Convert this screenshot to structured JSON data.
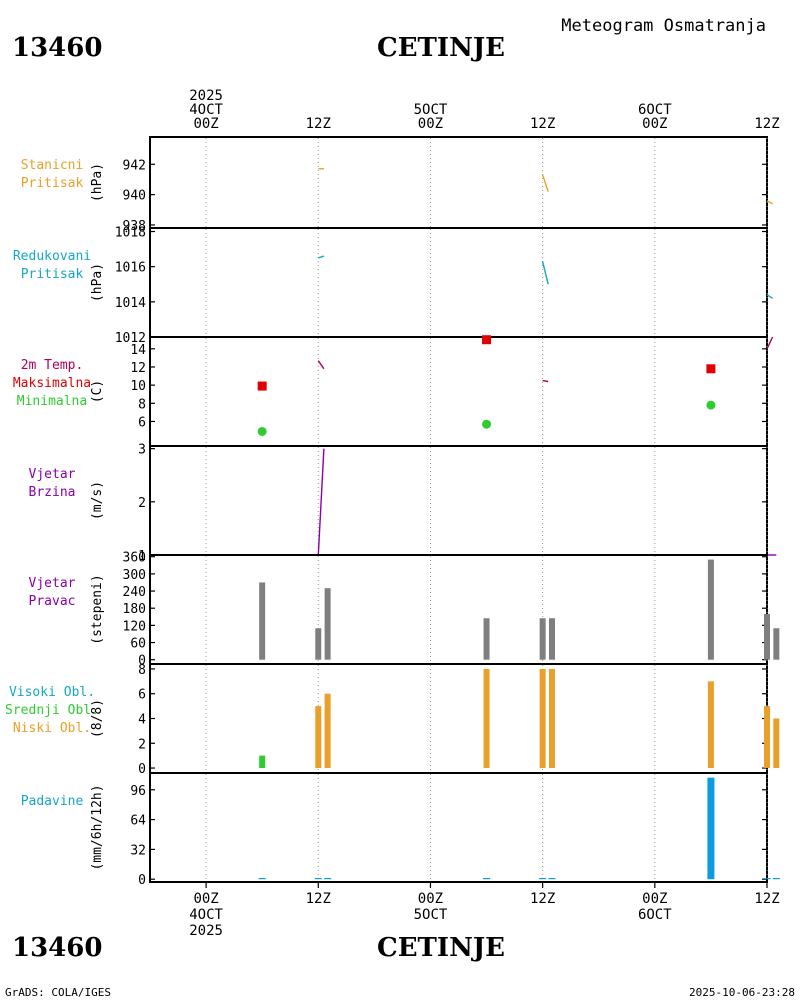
{
  "header": {
    "station_id": "13460",
    "station_name": "CETINJE",
    "subtitle": "Meteogram Osmatranja"
  },
  "footer": {
    "station_id": "13460",
    "station_name": "CETINJE",
    "credit": "GrADS: COLA/IGES",
    "timestamp": "2025-10-06-23:28"
  },
  "colors": {
    "orange": "#E8A02A",
    "cyan": "#15A6C8",
    "magenta": "#B0005A",
    "red": "#E00000",
    "green": "#2ECC2E",
    "purple": "#8A00AA",
    "gray": "#7F7F7F",
    "blue": "#0A9BE0"
  },
  "chart_data": {
    "type": "meteogram",
    "title": "Meteogram Osmatranja",
    "time_axis": {
      "range_hours": [
        -6,
        60
      ],
      "top_labels": [
        {
          "hour": 0,
          "lines": [
            "2025",
            "4OCT",
            "00Z"
          ]
        },
        {
          "hour": 12,
          "lines": [
            "12Z"
          ]
        },
        {
          "hour": 24,
          "lines": [
            "5OCT",
            "00Z"
          ]
        },
        {
          "hour": 36,
          "lines": [
            "12Z"
          ]
        },
        {
          "hour": 48,
          "lines": [
            "6OCT",
            "00Z"
          ]
        },
        {
          "hour": 60,
          "lines": [
            "12Z"
          ]
        }
      ],
      "bottom_labels": [
        {
          "hour": 0,
          "lines": [
            "00Z",
            "4OCT",
            "2025"
          ]
        },
        {
          "hour": 12,
          "lines": [
            "12Z"
          ]
        },
        {
          "hour": 24,
          "lines": [
            "00Z",
            "5OCT"
          ]
        },
        {
          "hour": 36,
          "lines": [
            "12Z"
          ]
        },
        {
          "hour": 48,
          "lines": [
            "00Z",
            "6OCT"
          ]
        },
        {
          "hour": 60,
          "lines": [
            "12Z"
          ]
        }
      ],
      "grid_hours": [
        0,
        12,
        24,
        36,
        48,
        60
      ]
    },
    "panels": [
      {
        "id": "station-pressure",
        "labels": [
          {
            "text": "Stanicni",
            "color": "orange"
          },
          {
            "text": "Pritisak",
            "color": "orange"
          }
        ],
        "unit": "(hPa)",
        "ylim": [
          937.8,
          943.8
        ],
        "ticks": [
          938,
          940,
          942
        ],
        "series": [
          {
            "type": "line",
            "color": "orange",
            "segments": [
              [
                [
                  12.0,
                  941.7
                ],
                [
                  12.6,
                  941.7
                ]
              ],
              [
                [
                  36.0,
                  941.3
                ],
                [
                  36.6,
                  940.2
                ]
              ],
              [
                [
                  60.0,
                  939.6
                ],
                [
                  60.6,
                  939.4
                ]
              ]
            ]
          }
        ]
      },
      {
        "id": "reduced-pressure",
        "labels": [
          {
            "text": "Redukovani",
            "color": "cyan"
          },
          {
            "text": "Pritisak",
            "color": "cyan"
          }
        ],
        "unit": "(hPa)",
        "ylim": [
          1012,
          1018.2
        ],
        "ticks": [
          1012,
          1014,
          1016,
          1018
        ],
        "series": [
          {
            "type": "line",
            "color": "cyan",
            "segments": [
              [
                [
                  12.0,
                  1016.5
                ],
                [
                  12.6,
                  1016.6
                ]
              ],
              [
                [
                  36.0,
                  1016.3
                ],
                [
                  36.6,
                  1015.0
                ]
              ],
              [
                [
                  60.0,
                  1014.4
                ],
                [
                  60.6,
                  1014.2
                ]
              ]
            ]
          }
        ]
      },
      {
        "id": "temperature",
        "labels": [
          {
            "text": "2m Temp.",
            "color": "magenta"
          },
          {
            "text": "Maksimalna",
            "color": "red"
          },
          {
            "text": "Minimalna",
            "color": "green"
          }
        ],
        "unit": "(C)",
        "ylim": [
          3.3,
          15.3
        ],
        "ticks": [
          6,
          8,
          10,
          12,
          14
        ],
        "series": [
          {
            "type": "line",
            "color": "magenta",
            "segments": [
              [
                [
                  12.0,
                  12.7
                ],
                [
                  12.6,
                  11.8
                ]
              ],
              [
                [
                  36.0,
                  10.5
                ],
                [
                  36.6,
                  10.4
                ]
              ],
              [
                [
                  60.0,
                  14.0
                ],
                [
                  60.6,
                  15.3
                ]
              ]
            ]
          },
          {
            "type": "square",
            "name": "Maksimalna",
            "color": "red",
            "points": [
              [
                6,
                9.9
              ],
              [
                30,
                15.0
              ],
              [
                54,
                11.8
              ]
            ]
          },
          {
            "type": "circle",
            "name": "Minimalna",
            "color": "green",
            "points": [
              [
                6,
                4.9
              ],
              [
                30,
                5.7
              ],
              [
                54,
                7.8
              ]
            ]
          }
        ]
      },
      {
        "id": "wind-speed",
        "labels": [
          {
            "text": "Vjetar",
            "color": "purple"
          },
          {
            "text": "Brzina",
            "color": "purple"
          }
        ],
        "unit": "(m/s)",
        "ylim": [
          1,
          3.05
        ],
        "ticks": [
          1,
          2,
          3
        ],
        "series": [
          {
            "type": "line",
            "color": "purple",
            "segments": [
              [
                [
                  12.0,
                  1.0
                ],
                [
                  12.6,
                  3.0
                ]
              ],
              [
                [
                  36.0,
                  1.0
                ],
                [
                  37.0,
                  1.0
                ]
              ],
              [
                [
                  60.0,
                  1.0
                ],
                [
                  61.0,
                  1.0
                ]
              ]
            ]
          }
        ]
      },
      {
        "id": "wind-direction",
        "labels": [
          {
            "text": "Vjetar",
            "color": "purple"
          },
          {
            "text": "Pravac",
            "color": "purple"
          }
        ],
        "unit": "(stepeni)",
        "ylim": [
          -15,
          366
        ],
        "ticks": [
          0,
          60,
          120,
          180,
          240,
          300,
          360
        ],
        "series": [
          {
            "type": "bar",
            "color": "gray",
            "points": [
              [
                6,
                270
              ],
              [
                12,
                110
              ],
              [
                13,
                250
              ],
              [
                30,
                145
              ],
              [
                36,
                145
              ],
              [
                37,
                145
              ],
              [
                54,
                350
              ],
              [
                60,
                160
              ],
              [
                61,
                110
              ]
            ]
          }
        ]
      },
      {
        "id": "cloud-cover",
        "labels": [
          {
            "text": "Visoki Obl.",
            "color": "cyan"
          },
          {
            "text": "Srednji Obl.",
            "color": "green"
          },
          {
            "text": "Niski Obl.",
            "color": "orange"
          }
        ],
        "unit": "(8/8)",
        "ylim": [
          -0.4,
          8.4
        ],
        "ticks": [
          0,
          2,
          4,
          6,
          8
        ],
        "series": [
          {
            "type": "bar",
            "name": "Srednji Obl.",
            "color": "green",
            "points": [
              [
                6,
                1
              ]
            ]
          },
          {
            "type": "bar",
            "name": "Niski Obl.",
            "color": "orange",
            "points": [
              [
                12,
                5
              ],
              [
                13,
                6
              ],
              [
                30,
                8
              ],
              [
                36,
                8
              ],
              [
                37,
                8
              ],
              [
                54,
                7
              ],
              [
                60,
                5
              ],
              [
                61,
                4
              ]
            ]
          }
        ]
      },
      {
        "id": "precipitation",
        "labels": [
          {
            "text": "Padavine",
            "color": "cyan"
          }
        ],
        "unit": "(mm/6h/12h)",
        "ylim": [
          -3,
          114
        ],
        "ticks": [
          0,
          32,
          64,
          96
        ],
        "series": [
          {
            "type": "bar",
            "color": "blue",
            "wide": true,
            "points": [
              [
                6,
                0.5
              ],
              [
                12,
                0.5
              ],
              [
                13,
                0.5
              ],
              [
                30,
                0.5
              ],
              [
                36,
                0.5
              ],
              [
                37,
                0.5
              ],
              [
                54,
                109
              ],
              [
                60,
                0.5
              ],
              [
                61,
                0.5
              ]
            ]
          }
        ]
      }
    ]
  }
}
